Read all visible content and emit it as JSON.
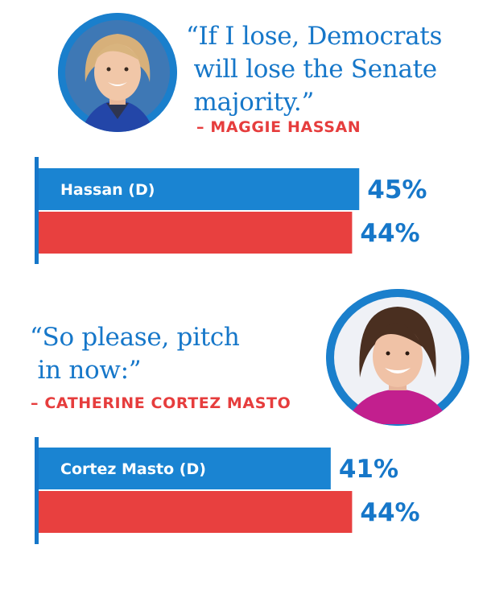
{
  "panels": [
    {
      "quote": "“If I lose, Democrats\n will lose the Senate\n majority.”",
      "attribution": "– MAGGIE HASSAN",
      "portrait_icon": "portrait-maggie-hassan"
    },
    {
      "quote": "“So please, pitch\n in now:”",
      "attribution": "– CATHERINE CORTEZ MASTO",
      "portrait_icon": "portrait-catherine-cortez-masto"
    }
  ],
  "colors": {
    "blue": "#1a84d2",
    "red": "#e8403f",
    "axis": "#1677c9",
    "text_blue": "#1677c9",
    "attribution_red": "#e63d3d"
  },
  "chart_data": [
    {
      "type": "bar",
      "orientation": "horizontal",
      "categories": [
        "Hassan (D)",
        ""
      ],
      "values": [
        45,
        44
      ],
      "labels": [
        "45%",
        "44%"
      ],
      "colors": [
        "#1a84d2",
        "#e8403f"
      ],
      "xlim": [
        0,
        50
      ],
      "grid": false
    },
    {
      "type": "bar",
      "orientation": "horizontal",
      "categories": [
        "Cortez Masto (D)",
        ""
      ],
      "values": [
        41,
        44
      ],
      "labels": [
        "41%",
        "44%"
      ],
      "colors": [
        "#1a84d2",
        "#e8403f"
      ],
      "xlim": [
        0,
        50
      ],
      "grid": false
    }
  ]
}
